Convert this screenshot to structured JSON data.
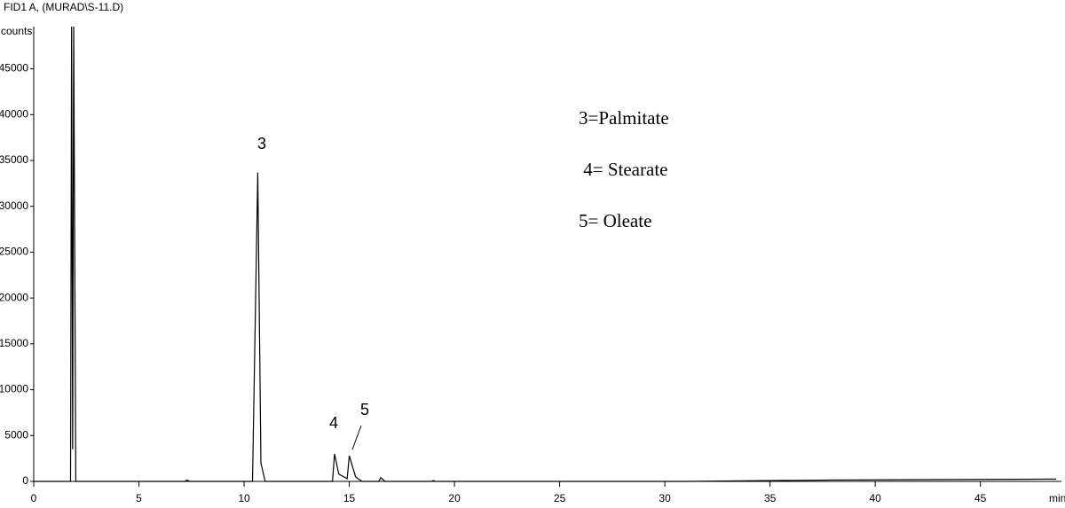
{
  "chart_data": {
    "type": "line",
    "title": "FID1 A,  (MURAD\\S-11.D)",
    "y_label": "counts",
    "x_label": "min",
    "x": [
      0,
      1.75,
      1.8,
      1.85,
      1.9,
      2.0,
      7.2,
      7.3,
      7.4,
      10.4,
      10.65,
      10.8,
      11.0,
      14.2,
      14.3,
      14.5,
      14.9,
      15.0,
      15.3,
      15.6,
      16.4,
      16.5,
      16.7,
      18.9,
      19.0,
      19.1,
      31.0,
      38.0,
      48.6
    ],
    "values": [
      0,
      0,
      49600,
      3500,
      49600,
      0,
      0,
      150,
      0,
      0,
      33700,
      2000,
      0,
      0,
      3000,
      800,
      300,
      2800,
      500,
      0,
      0,
      400,
      0,
      0,
      100,
      0,
      0,
      150,
      250
    ],
    "color": "#000000",
    "xlim": [
      0,
      48.6
    ],
    "ylim": [
      0,
      49600
    ],
    "xticks": [
      0,
      5,
      10,
      15,
      20,
      25,
      30,
      35,
      40,
      45
    ],
    "yticks": [
      0,
      5000,
      10000,
      15000,
      20000,
      25000,
      30000,
      35000,
      40000,
      45000
    ],
    "annotations": [
      "3",
      "4",
      "5"
    ],
    "legend_texts": [
      "3=Palmitate",
      " 4= Stearate",
      "5= Oleate"
    ]
  }
}
